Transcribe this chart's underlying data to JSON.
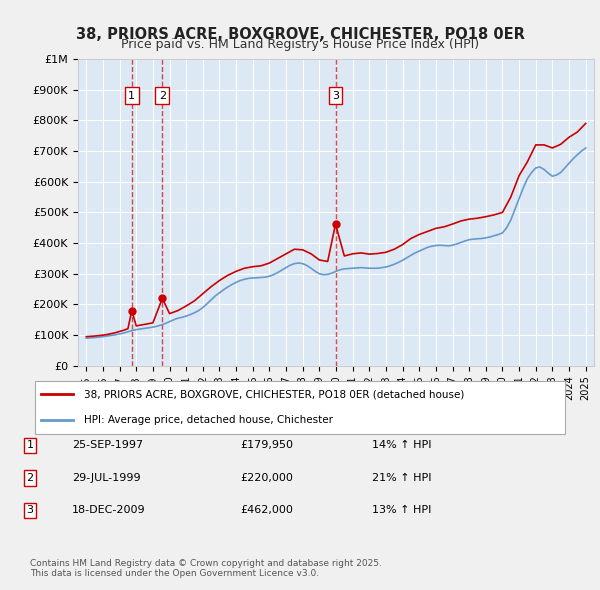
{
  "title": "38, PRIORS ACRE, BOXGROVE, CHICHESTER, PO18 0ER",
  "subtitle": "Price paid vs. HM Land Registry's House Price Index (HPI)",
  "background_color": "#dce9f5",
  "plot_bg_color": "#dce9f5",
  "ylim": [
    0,
    1000000
  ],
  "yticks": [
    0,
    100000,
    200000,
    300000,
    400000,
    500000,
    600000,
    700000,
    800000,
    900000,
    1000000
  ],
  "ytick_labels": [
    "£0",
    "£100K",
    "£200K",
    "£300K",
    "£400K",
    "£500K",
    "£600K",
    "£700K",
    "£800K",
    "£900K",
    "£1M"
  ],
  "sale_dates_year": [
    1997.73,
    1999.57,
    2009.97
  ],
  "sale_prices": [
    179950,
    220000,
    462000
  ],
  "sale_labels": [
    "1",
    "2",
    "3"
  ],
  "legend_line1": "38, PRIORS ACRE, BOXGROVE, CHICHESTER, PO18 0ER (detached house)",
  "legend_line2": "HPI: Average price, detached house, Chichester",
  "table_rows": [
    [
      "1",
      "25-SEP-1997",
      "£179,950",
      "14% ↑ HPI"
    ],
    [
      "2",
      "29-JUL-1999",
      "£220,000",
      "21% ↑ HPI"
    ],
    [
      "3",
      "18-DEC-2009",
      "£462,000",
      "13% ↑ HPI"
    ]
  ],
  "footnote": "Contains HM Land Registry data © Crown copyright and database right 2025.\nThis data is licensed under the Open Government Licence v3.0.",
  "red_color": "#cc0000",
  "blue_color": "#6699cc",
  "hpi_years": [
    1995.0,
    1995.25,
    1995.5,
    1995.75,
    1996.0,
    1996.25,
    1996.5,
    1996.75,
    1997.0,
    1997.25,
    1997.5,
    1997.75,
    1998.0,
    1998.25,
    1998.5,
    1998.75,
    1999.0,
    1999.25,
    1999.5,
    1999.75,
    2000.0,
    2000.25,
    2000.5,
    2000.75,
    2001.0,
    2001.25,
    2001.5,
    2001.75,
    2002.0,
    2002.25,
    2002.5,
    2002.75,
    2003.0,
    2003.25,
    2003.5,
    2003.75,
    2004.0,
    2004.25,
    2004.5,
    2004.75,
    2005.0,
    2005.25,
    2005.5,
    2005.75,
    2006.0,
    2006.25,
    2006.5,
    2006.75,
    2007.0,
    2007.25,
    2007.5,
    2007.75,
    2008.0,
    2008.25,
    2008.5,
    2008.75,
    2009.0,
    2009.25,
    2009.5,
    2009.75,
    2010.0,
    2010.25,
    2010.5,
    2010.75,
    2011.0,
    2011.25,
    2011.5,
    2011.75,
    2012.0,
    2012.25,
    2012.5,
    2012.75,
    2013.0,
    2013.25,
    2013.5,
    2013.75,
    2014.0,
    2014.25,
    2014.5,
    2014.75,
    2015.0,
    2015.25,
    2015.5,
    2015.75,
    2016.0,
    2016.25,
    2016.5,
    2016.75,
    2017.0,
    2017.25,
    2017.5,
    2017.75,
    2018.0,
    2018.25,
    2018.5,
    2018.75,
    2019.0,
    2019.25,
    2019.5,
    2019.75,
    2020.0,
    2020.25,
    2020.5,
    2020.75,
    2021.0,
    2021.25,
    2021.5,
    2021.75,
    2022.0,
    2022.25,
    2022.5,
    2022.75,
    2023.0,
    2023.25,
    2023.5,
    2023.75,
    2024.0,
    2024.25,
    2024.5,
    2024.75,
    2025.0
  ],
  "hpi_values": [
    90000,
    91000,
    92000,
    93500,
    95000,
    97000,
    99000,
    101000,
    104000,
    107000,
    111000,
    115000,
    118000,
    120000,
    122000,
    124000,
    126000,
    129000,
    133000,
    138000,
    144000,
    150000,
    155000,
    158000,
    162000,
    167000,
    173000,
    180000,
    190000,
    202000,
    215000,
    228000,
    238000,
    248000,
    257000,
    265000,
    272000,
    278000,
    282000,
    285000,
    286000,
    287000,
    288000,
    289000,
    292000,
    297000,
    304000,
    312000,
    320000,
    328000,
    333000,
    335000,
    333000,
    327000,
    318000,
    308000,
    300000,
    297000,
    298000,
    302000,
    308000,
    313000,
    316000,
    317000,
    318000,
    319000,
    320000,
    319000,
    318000,
    318000,
    318000,
    320000,
    322000,
    326000,
    331000,
    337000,
    344000,
    352000,
    360000,
    368000,
    374000,
    380000,
    386000,
    390000,
    392000,
    393000,
    392000,
    391000,
    393000,
    397000,
    402000,
    407000,
    411000,
    413000,
    414000,
    415000,
    417000,
    420000,
    424000,
    428000,
    433000,
    450000,
    475000,
    510000,
    545000,
    580000,
    610000,
    630000,
    645000,
    648000,
    640000,
    628000,
    618000,
    622000,
    630000,
    645000,
    660000,
    675000,
    688000,
    700000,
    710000
  ],
  "red_line_years": [
    1995.0,
    1995.25,
    1995.5,
    1995.75,
    1996.0,
    1996.25,
    1996.5,
    1996.75,
    1997.0,
    1997.25,
    1997.5,
    1997.73,
    1998.0,
    1998.5,
    1999.0,
    1999.57,
    2000.0,
    2000.5,
    2001.0,
    2001.5,
    2002.0,
    2002.5,
    2003.0,
    2003.5,
    2004.0,
    2004.5,
    2005.0,
    2005.5,
    2006.0,
    2006.5,
    2007.0,
    2007.5,
    2008.0,
    2008.5,
    2009.0,
    2009.5,
    2009.97,
    2010.5,
    2011.0,
    2011.5,
    2012.0,
    2012.5,
    2013.0,
    2013.5,
    2014.0,
    2014.5,
    2015.0,
    2015.5,
    2016.0,
    2016.5,
    2017.0,
    2017.5,
    2018.0,
    2018.5,
    2019.0,
    2019.5,
    2020.0,
    2020.5,
    2021.0,
    2021.5,
    2022.0,
    2022.5,
    2023.0,
    2023.5,
    2024.0,
    2024.5,
    2025.0
  ],
  "red_line_values": [
    95000,
    96000,
    97000,
    98500,
    100000,
    102000,
    105000,
    108000,
    112000,
    116000,
    121000,
    179950,
    130000,
    135000,
    140000,
    220000,
    170000,
    180000,
    195000,
    212000,
    235000,
    258000,
    278000,
    295000,
    308000,
    318000,
    323000,
    326000,
    335000,
    350000,
    365000,
    380000,
    378000,
    365000,
    345000,
    340000,
    462000,
    358000,
    365000,
    368000,
    364000,
    366000,
    370000,
    380000,
    395000,
    415000,
    428000,
    438000,
    448000,
    453000,
    462000,
    472000,
    478000,
    481000,
    486000,
    492000,
    500000,
    550000,
    620000,
    665000,
    720000,
    720000,
    710000,
    722000,
    745000,
    762000,
    790000
  ]
}
